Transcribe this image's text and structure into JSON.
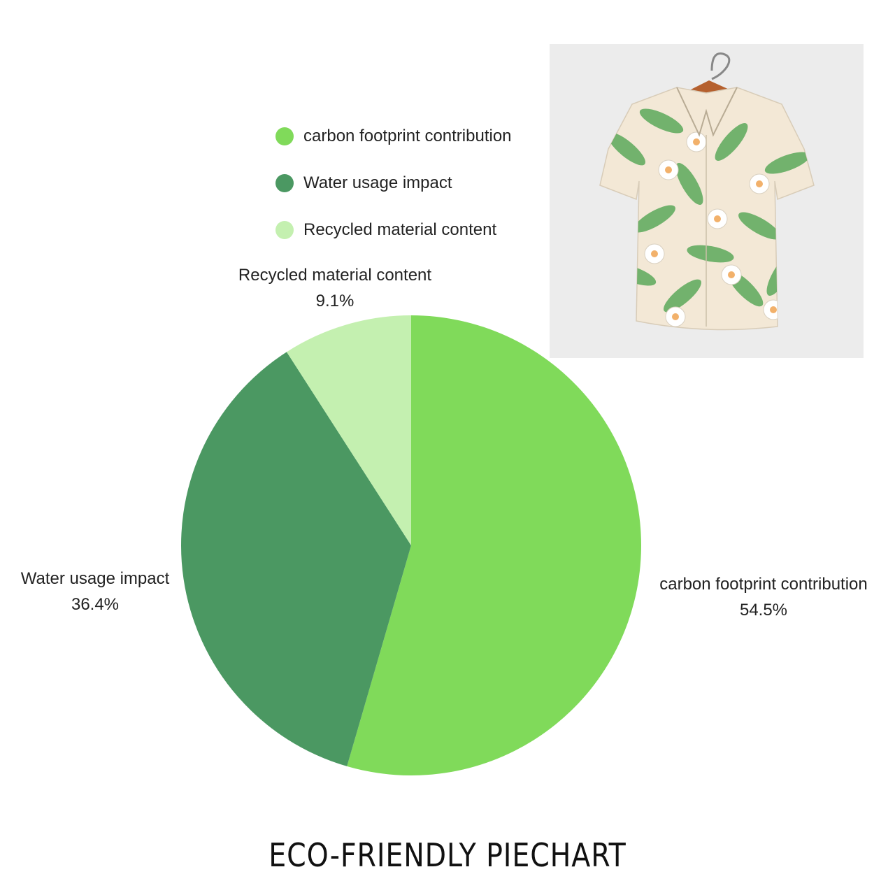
{
  "chart_data": {
    "type": "pie",
    "title": "ECO-FRIENDLY PIECHART",
    "start_angle_deg": 0,
    "direction": "clockwise",
    "legend_position": "top",
    "slices": [
      {
        "label": "carbon footprint contribution",
        "value": 54.5,
        "value_label": "54.5%",
        "color": "#80da5a"
      },
      {
        "label": "Water usage impact",
        "value": 36.4,
        "value_label": "36.4%",
        "color": "#4b9862"
      },
      {
        "label": "Recycled material content",
        "value": 9.1,
        "value_label": "9.1%",
        "color": "#c4f0b0"
      }
    ]
  },
  "photo": {
    "subject": "hawaiian-shirt",
    "background": "#ececec",
    "shirt_base": "#f3e8d6",
    "leaf_color": "#5aa85a",
    "flower_accent": "#f2b16b"
  }
}
